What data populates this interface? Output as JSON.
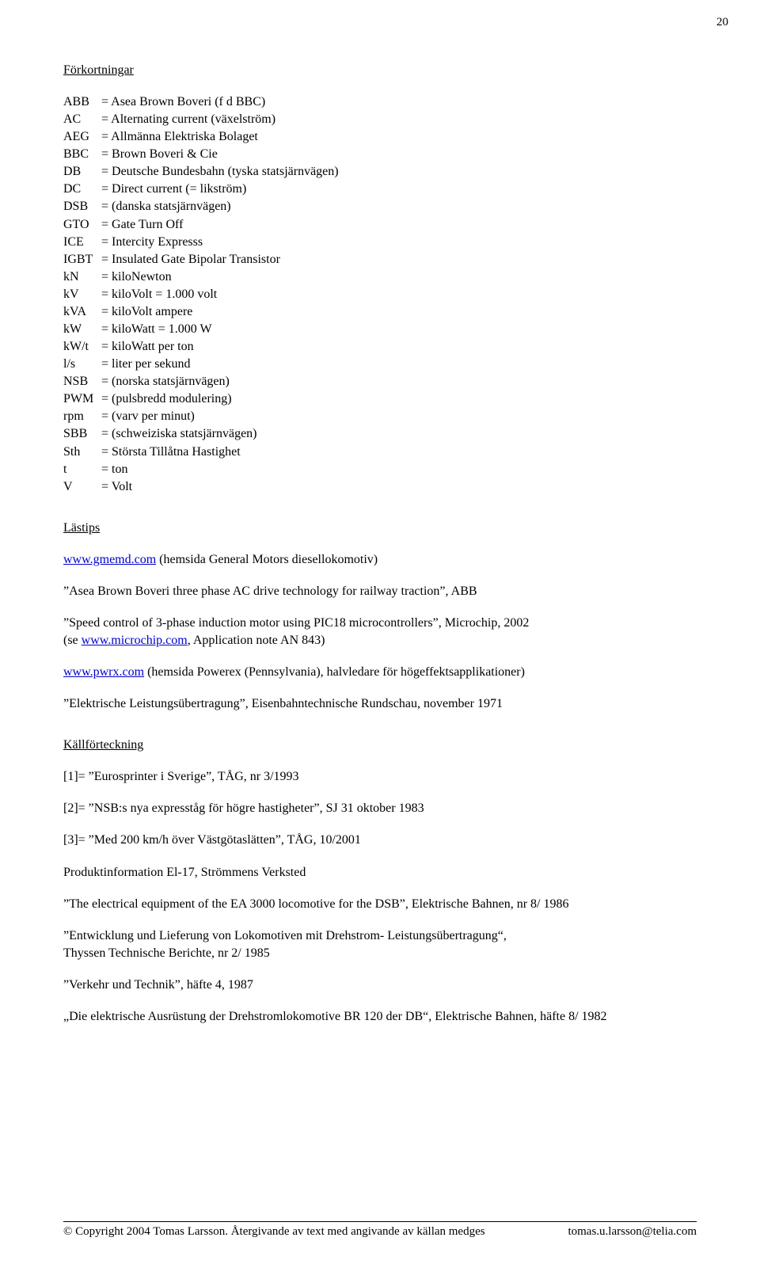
{
  "page_number": "20",
  "headings": {
    "forkortningar": "Förkortningar",
    "lastips": "Lästips",
    "kallforteckning": "Källförteckning"
  },
  "abbreviations": [
    {
      "k": "ABB",
      "v": "= Asea Brown Boveri (f d BBC)"
    },
    {
      "k": "AC",
      "v": "= Alternating current (växelström)"
    },
    {
      "k": "AEG",
      "v": "= Allmänna Elektriska Bolaget"
    },
    {
      "k": "BBC",
      "v": "= Brown Boveri & Cie"
    },
    {
      "k": "DB",
      "v": "= Deutsche Bundesbahn (tyska statsjärnvägen)"
    },
    {
      "k": "DC",
      "v": "= Direct current (= likström)"
    },
    {
      "k": "DSB",
      "v": "= (danska statsjärnvägen)"
    },
    {
      "k": "GTO",
      "v": "= Gate Turn Off"
    },
    {
      "k": "ICE",
      "v": "= Intercity Expresss"
    },
    {
      "k": "IGBT",
      "v": "= Insulated Gate Bipolar Transistor"
    },
    {
      "k": "kN",
      "v": "= kiloNewton"
    },
    {
      "k": "kV",
      "v": "= kiloVolt = 1.000 volt"
    },
    {
      "k": "kVA",
      "v": "= kiloVolt ampere"
    },
    {
      "k": "kW",
      "v": "= kiloWatt = 1.000 W"
    },
    {
      "k": "kW/t",
      "v": "= kiloWatt per ton"
    },
    {
      "k": "l/s",
      "v": "= liter per sekund"
    },
    {
      "k": "NSB",
      "v": "= (norska statsjärnvägen)"
    },
    {
      "k": "PWM",
      "v": "= (pulsbredd modulering)"
    },
    {
      "k": "rpm",
      "v": "= (varv per minut)"
    },
    {
      "k": "SBB",
      "v": "= (schweiziska statsjärnvägen)"
    },
    {
      "k": "Sth",
      "v": "= Största Tillåtna Hastighet"
    },
    {
      "k": "t",
      "v": "= ton"
    },
    {
      "k": "V",
      "v": "= Volt"
    }
  ],
  "lastips": {
    "l1_link": "www.gmemd.com",
    "l1_rest": " (hemsida General Motors diesellokomotiv)",
    "l2": "Asea Brown Boveri three phase AC drive technology for railway traction”, ABB",
    "l3a": "Speed control of 3-phase induction motor using PIC18 microcontrollers”, Microchip, 2002",
    "l3b_pre": "(se ",
    "l3b_link": "www.microchip.com",
    "l3b_post": ", Application note AN 843)",
    "l4_link": "www.pwrx.com",
    "l4_rest": " (hemsida Powerex (Pennsylvania), halvledare för högeffektsapplikationer)",
    "l5": "Elektrische Leistungsübertragung”, Eisenbahntechnische Rundschau, november 1971"
  },
  "kallforteckning": {
    "r1": "[1]= ”Eurosprinter i Sverige”, TÅG, nr 3/1993",
    "r2": "[2]= ”NSB:s nya expresståg för högre hastigheter”, SJ 31 oktober 1983",
    "r3": "[3]= ”Med 200 km/h över Västgötaslätten”, TÅG, 10/2001",
    "r4": "Produktinformation El-17, Strömmens Verksted",
    "r5": "”The electrical equipment of the EA 3000 locomotive for the DSB”, Elektrische Bahnen, nr 8/ 1986",
    "r6a": "”Entwicklung und Lieferung von Lokomotiven mit Drehstrom- Leistungsübertragung“,",
    "r6b": "Thyssen Technische Berichte, nr 2/ 1985",
    "r7": "”Verkehr und Technik”, häfte 4, 1987",
    "r8": "„Die elektrische Ausrüstung der Drehstromlokomotive BR 120 der DB“, Elektrische Bahnen, häfte 8/ 1982"
  },
  "footer": {
    "left": "© Copyright 2004 Tomas Larsson. Återgivande av text med angivande av källan medges",
    "right": "tomas.u.larsson@telia.com"
  }
}
